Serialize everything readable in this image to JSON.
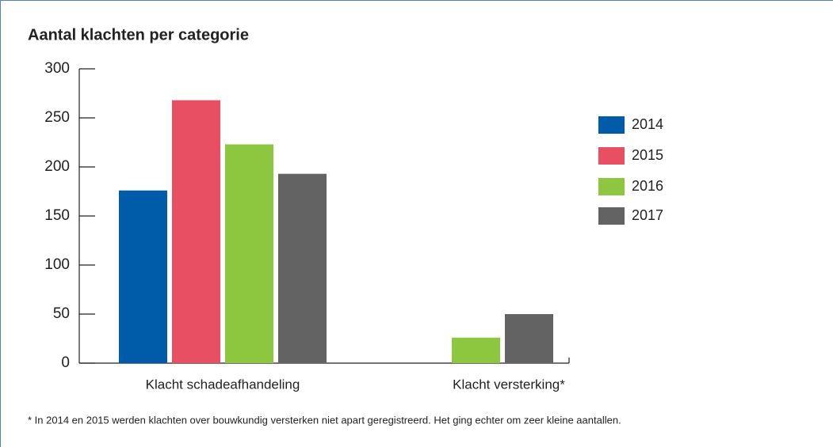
{
  "chart_data": {
    "type": "bar",
    "title": "Aantal klachten per categorie",
    "footnote": "* In 2014 en 2015 werden klachten over bouwkundig versterken niet apart geregistreerd. Het ging echter om zeer kleine aantallen.",
    "categories": [
      "Klacht schadeafhandeling",
      "Klacht versterking*"
    ],
    "series": [
      {
        "name": "2014",
        "color": "#005ca9",
        "values": [
          176,
          null
        ]
      },
      {
        "name": "2015",
        "color": "#e84f62",
        "values": [
          268,
          null
        ]
      },
      {
        "name": "2016",
        "color": "#8dc63f",
        "values": [
          223,
          26
        ]
      },
      {
        "name": "2017",
        "color": "#636363",
        "values": [
          193,
          50
        ]
      }
    ],
    "ylim": [
      0,
      300
    ],
    "yticks": [
      0,
      50,
      100,
      150,
      200,
      250,
      300
    ]
  }
}
